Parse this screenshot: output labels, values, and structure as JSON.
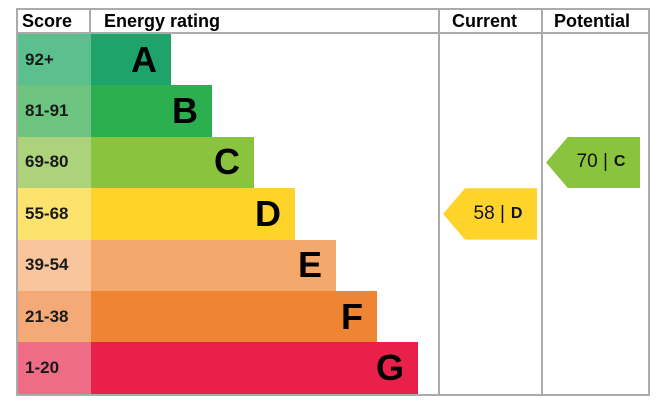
{
  "headers": {
    "score": "Score",
    "energy_rating": "Energy rating",
    "current": "Current",
    "potential": "Potential"
  },
  "chart_data": {
    "type": "bar",
    "bands": [
      {
        "letter": "A",
        "range": "92+",
        "color": "#1ea36a",
        "score_color": "#5bc08d"
      },
      {
        "letter": "B",
        "range": "81-91",
        "color": "#2cb04f",
        "score_color": "#6dc47e"
      },
      {
        "letter": "C",
        "range": "69-80",
        "color": "#8ac43f",
        "score_color": "#acd37b"
      },
      {
        "letter": "D",
        "range": "55-68",
        "color": "#fed42a",
        "score_color": "#fde36e"
      },
      {
        "letter": "E",
        "range": "39-54",
        "color": "#f5a86b",
        "score_color": "#f8c59d"
      },
      {
        "letter": "F",
        "range": "21-38",
        "color": "#ef8433",
        "score_color": "#f4aa76"
      },
      {
        "letter": "G",
        "range": "1-20",
        "color": "#e9204a",
        "score_color": "#ee6c85"
      }
    ],
    "current": {
      "value": 58,
      "band": "D",
      "label": "58 |",
      "color": "#fed42a"
    },
    "potential": {
      "value": 70,
      "band": "C",
      "label": "70 |",
      "color": "#8ac43f"
    }
  }
}
